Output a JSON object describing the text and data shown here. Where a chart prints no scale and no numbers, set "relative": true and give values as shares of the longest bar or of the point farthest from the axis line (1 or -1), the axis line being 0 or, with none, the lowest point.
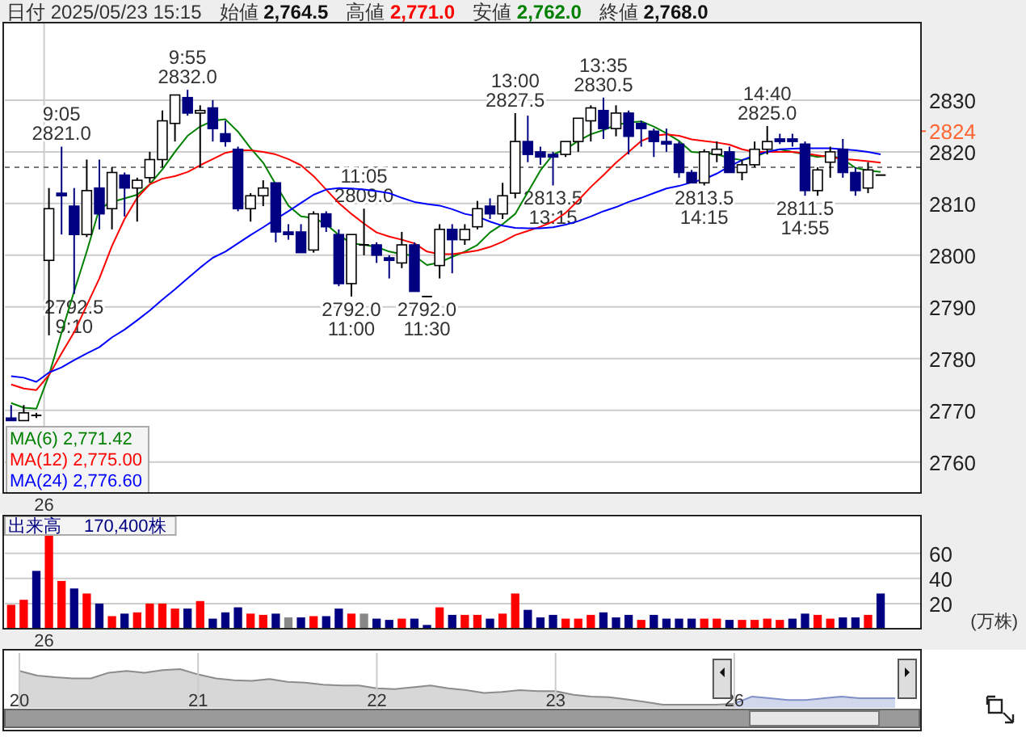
{
  "chart_data": [
    {
      "type": "candlestick",
      "annotations": [
        "日付 2025/05/23 15:15",
        "始値 **2,764.5**",
        "高値 **2,771.0**",
        "安値 **2,762.0**",
        "終値 **2,768.0**",
        {
          "text": "9:05\n2821.0",
          "y": 2821.0
        },
        {
          "text": "2792.5\n9:10",
          "y": 2792.5
        },
        {
          "text": "9:55\n2832.0",
          "y": 2832.0
        },
        {
          "text": "11:05\n2809.0",
          "y": 2809.0
        },
        {
          "text": "2792.0\n11:00",
          "y": 2792.0
        },
        {
          "text": "2792.0\n11:30",
          "y": 2792.0
        },
        {
          "text": "13:00\n2827.5",
          "y": 2827.5
        },
        {
          "text": "2813.5\n13:15",
          "y": 2813.5
        },
        {
          "text": "13:35\n2830.5",
          "y": 2830.5
        },
        {
          "text": "2813.5\n14:15",
          "y": 2813.5
        },
        {
          "text": "14:40\n2825.0",
          "y": 2825.0
        },
        {
          "text": "2811.5\n14:55",
          "y": 2811.5
        }
      ],
      "categories": [
        null,
        null,
        null,
        "26",
        null,
        null,
        null,
        null,
        null,
        null,
        null,
        null,
        null,
        null,
        null,
        null,
        null,
        null,
        null,
        null,
        null,
        null,
        null,
        null,
        null,
        null,
        null,
        null,
        null,
        null,
        null,
        null,
        null,
        null,
        null,
        null,
        null,
        null,
        null,
        null,
        null,
        null,
        null,
        null,
        null,
        null,
        null,
        null,
        null,
        null,
        null,
        null,
        null,
        null,
        null,
        null,
        null,
        null,
        null,
        null,
        null,
        null,
        null,
        null,
        null,
        null,
        null,
        null,
        null,
        null
      ],
      "ohlc": [
        [
          2768.5,
          2771,
          2768,
          2768
        ],
        [
          2768,
          2771,
          2768,
          2769.5
        ],
        [
          2769,
          2769.5,
          2768.5,
          2769
        ],
        [
          2799,
          2813,
          2784.5,
          2809
        ],
        [
          2812,
          2821,
          2804,
          2811.5
        ],
        [
          2809.5,
          2813,
          2792.5,
          2804
        ],
        [
          2804,
          2818.5,
          2803.5,
          2812.5
        ],
        [
          2813,
          2818.5,
          2805,
          2808
        ],
        [
          2809,
          2817,
          2805,
          2816
        ],
        [
          2815.5,
          2816,
          2807.5,
          2813
        ],
        [
          2813,
          2815,
          2806.5,
          2814.5
        ],
        [
          2815,
          2820,
          2814,
          2818.5
        ],
        [
          2818.5,
          2828,
          2817,
          2826
        ],
        [
          2825.5,
          2831,
          2822,
          2831
        ],
        [
          2830.5,
          2832,
          2827,
          2827.5
        ],
        [
          2827.5,
          2829,
          2817,
          2828
        ],
        [
          2828.5,
          2830,
          2822,
          2824.5
        ],
        [
          2823.5,
          2826,
          2821,
          2822
        ],
        [
          2820.5,
          2821,
          2808.5,
          2809
        ],
        [
          2809,
          2812,
          2806.5,
          2811.5
        ],
        [
          2811.5,
          2814.5,
          2809.5,
          2813
        ],
        [
          2814,
          2814,
          2802.5,
          2804.5
        ],
        [
          2804.5,
          2806,
          2803,
          2804
        ],
        [
          2804.5,
          2806,
          2800.5,
          2800.5
        ],
        [
          2801,
          2808.5,
          2800.5,
          2808
        ],
        [
          2808,
          2808.5,
          2804.5,
          2805.5
        ],
        [
          2804,
          2805,
          2794,
          2794.5
        ],
        [
          2794.5,
          2804,
          2792,
          2804
        ],
        [
          2802,
          2809,
          2800,
          2802
        ],
        [
          2802,
          2802.5,
          2798.5,
          2800
        ],
        [
          2799.5,
          2800,
          2795.5,
          2799
        ],
        [
          2798.5,
          2804.5,
          2797.5,
          2802
        ],
        [
          2802,
          2802.5,
          2793,
          2793
        ],
        [
          2792,
          2792,
          2792,
          2792
        ],
        [
          2798,
          2806,
          2795.5,
          2805
        ],
        [
          2805,
          2806,
          2796.5,
          2803
        ],
        [
          2803,
          2806,
          2802,
          2805
        ],
        [
          2805.5,
          2810.5,
          2805,
          2809
        ],
        [
          2809.5,
          2811,
          2807,
          2808
        ],
        [
          2808,
          2814,
          2807,
          2811.5
        ],
        [
          2812,
          2827.5,
          2811,
          2822
        ],
        [
          2822,
          2827,
          2818,
          2819.5
        ],
        [
          2820,
          2821,
          2817.5,
          2819
        ],
        [
          2819.5,
          2820,
          2813.5,
          2819
        ],
        [
          2819.5,
          2822,
          2819,
          2822
        ],
        [
          2822,
          2826.5,
          2820,
          2826.5
        ],
        [
          2826,
          2829,
          2822,
          2828.5
        ],
        [
          2828,
          2830.5,
          2822.5,
          2824.5
        ],
        [
          2824.5,
          2829,
          2823,
          2827.5
        ],
        [
          2827.5,
          2828,
          2819.5,
          2823
        ],
        [
          2825.5,
          2826,
          2821,
          2824.5
        ],
        [
          2824,
          2824.5,
          2819,
          2822
        ],
        [
          2822,
          2824.5,
          2820,
          2821.5
        ],
        [
          2821.5,
          2822,
          2815,
          2816
        ],
        [
          2816,
          2816.5,
          2814,
          2814
        ],
        [
          2814,
          2820.5,
          2813.5,
          2820
        ],
        [
          2819.5,
          2822,
          2818,
          2820.5
        ],
        [
          2820,
          2821,
          2816,
          2816
        ],
        [
          2816,
          2818.5,
          2814.5,
          2817.5
        ],
        [
          2817.5,
          2822,
          2817,
          2820.5
        ],
        [
          2820.5,
          2825,
          2819.5,
          2822
        ],
        [
          2822.5,
          2823.5,
          2821.5,
          2822
        ],
        [
          2822.5,
          2823.5,
          2821,
          2822
        ],
        [
          2821.5,
          2822,
          2811.5,
          2812.5
        ],
        [
          2812.5,
          2817,
          2811.5,
          2816.5
        ],
        [
          2818,
          2821,
          2815,
          2820
        ],
        [
          2820.5,
          2822.5,
          2815,
          2816
        ],
        [
          2816,
          2817,
          2811.5,
          2812.5
        ],
        [
          2813,
          2818,
          2812,
          2816.5
        ],
        [
          2815.5,
          2815.5,
          2815.5,
          2815.5
        ]
      ],
      "series": [
        {
          "name": "MA(6) 2,771.42",
          "type": "line",
          "color": "#008000",
          "values": [
            2771.4,
            2770.5,
            2770.3,
            2776.8,
            2785,
            2793,
            2800.7,
            2809,
            2810.3,
            2811,
            2811.7,
            2813.7,
            2816.6,
            2820,
            2823.1,
            2824.9,
            2826,
            2826.3,
            2823.9,
            2820.7,
            2817.9,
            2813.7,
            2809.6,
            2807.5,
            2807.2,
            2806,
            2803.9,
            2802.3,
            2802,
            2801.6,
            2800.7,
            2800.2,
            2799.9,
            2798.1,
            2798.6,
            2799.7,
            2800.7,
            2802,
            2804.4,
            2806,
            2808,
            2812.2,
            2816.4,
            2819.5,
            2820.5,
            2822.1,
            2823.4,
            2824.2,
            2825.2,
            2825.7,
            2825.9,
            2824.9,
            2823.6,
            2822.1,
            2820,
            2819.8,
            2819.5,
            2818.8,
            2818.4,
            2819,
            2820,
            2820.5,
            2820,
            2819.5,
            2819,
            2819.3,
            2818.6,
            2816.9,
            2816.4,
            2816.1
          ]
        },
        {
          "name": "MA(12) 2,775.00",
          "type": "line",
          "color": "#ff0000",
          "values": [
            2775.0,
            2774.2,
            2773.9,
            2776.8,
            2781,
            2785.1,
            2790.3,
            2795.5,
            2801.8,
            2807,
            2811.1,
            2813.7,
            2814.8,
            2815.3,
            2816.1,
            2817.4,
            2818.6,
            2819.8,
            2820.3,
            2820.3,
            2820,
            2819.5,
            2818.6,
            2817.4,
            2815.3,
            2812.7,
            2810.1,
            2808,
            2806.1,
            2804.4,
            2803.6,
            2803,
            2802.3,
            2800.7,
            2800.2,
            2800.2,
            2800.5,
            2800.9,
            2801.6,
            2802.6,
            2803.9,
            2804.7,
            2805.5,
            2806.5,
            2808.2,
            2810.6,
            2813.2,
            2815.5,
            2817.9,
            2820,
            2822.1,
            2823.1,
            2823.4,
            2823.1,
            2822.4,
            2822.1,
            2821.8,
            2821.4,
            2820.5,
            2820,
            2820,
            2820,
            2820,
            2819.7,
            2819.3,
            2819,
            2818.6,
            2818.4,
            2818.2,
            2817.9
          ]
        },
        {
          "name": "MA(24) 2,776.60",
          "type": "line",
          "color": "#0000ff",
          "values": [
            2776.6,
            2776.3,
            2775.5,
            2777.3,
            2778.3,
            2779.7,
            2781,
            2782.2,
            2784.1,
            2785.6,
            2787.4,
            2789.3,
            2791.4,
            2793.4,
            2795.5,
            2797.6,
            2799.5,
            2800.7,
            2802.3,
            2803.9,
            2805.4,
            2807,
            2808.5,
            2810.1,
            2811.7,
            2812.7,
            2813,
            2812.9,
            2812.7,
            2812.4,
            2812,
            2811.1,
            2810.3,
            2809.9,
            2809.6,
            2808.9,
            2808,
            2807.5,
            2806.5,
            2805.7,
            2805.3,
            2805.2,
            2805.2,
            2805.4,
            2805.9,
            2806.6,
            2807.5,
            2808.5,
            2809.3,
            2810.3,
            2811.1,
            2812,
            2812.9,
            2813.4,
            2814.1,
            2814.7,
            2815.8,
            2817.2,
            2818.4,
            2819.3,
            2820,
            2820.5,
            2820.6,
            2820.7,
            2820.7,
            2820.7,
            2820.5,
            2820.3,
            2820,
            2819.5
          ]
        }
      ],
      "ylim": [
        2754,
        2845
      ],
      "yticks": [
        2760,
        2770,
        2780,
        2790,
        2800,
        2810,
        2820,
        {
          "value": 2824,
          "label": "2824"
        },
        2830
      ],
      "grid": true,
      "legend": "bottom left",
      "ref_lines": [
        {
          "axis": "y",
          "value": 2817,
          "line_style": "dashed",
          "color": "#777777"
        }
      ]
    },
    {
      "type": "bar",
      "title": "出来高",
      "subtitle": "170,400株",
      "ylabel": "(万株)",
      "categories": [
        null,
        null,
        null,
        "26",
        null,
        null,
        null,
        null,
        null,
        null,
        null,
        null,
        null,
        null,
        null,
        null,
        null,
        null,
        null,
        null,
        null,
        null,
        null,
        null,
        null,
        null,
        null,
        null,
        null,
        null,
        null,
        null,
        null,
        null,
        null,
        null,
        null,
        null,
        null,
        null,
        null,
        null,
        null,
        null,
        null,
        null,
        null,
        null,
        null,
        null,
        null,
        null,
        null,
        null,
        null,
        null,
        null,
        null,
        null,
        null,
        null,
        null,
        null,
        null,
        null,
        null,
        null,
        null,
        null,
        null
      ],
      "values": [
        19,
        23,
        46,
        74,
        38,
        32,
        28,
        20,
        10,
        12,
        13,
        20,
        20,
        16,
        16,
        22,
        8,
        13,
        17,
        12,
        11,
        12,
        9,
        9,
        10,
        10,
        16,
        12,
        12,
        8,
        7,
        8,
        8,
        3,
        17,
        11,
        11,
        11,
        8,
        12,
        28,
        15,
        9,
        11,
        8,
        8,
        11,
        13,
        9,
        11,
        7,
        11,
        8,
        8,
        8,
        8,
        8,
        7,
        7,
        7,
        8,
        7,
        8,
        12,
        11,
        8,
        9,
        9,
        11,
        28
      ],
      "colors": [
        "#ff0000",
        "#ff0000",
        "#000080",
        "#ff0000",
        "#ff0000",
        "#000080",
        "#ff0000",
        "#000080",
        "#ff0000",
        "#000080",
        "#ff0000",
        "#ff0000",
        "#ff0000",
        "#ff0000",
        "#000080",
        "#ff0000",
        "#000080",
        "#000080",
        "#000080",
        "#ff0000",
        "#ff0000",
        "#000080",
        "#888888",
        "#000080",
        "#ff0000",
        "#000080",
        "#000080",
        "#ff0000",
        "#888888",
        "#000080",
        "#000080",
        "#ff0000",
        "#000080",
        "#000080",
        "#ff0000",
        "#000080",
        "#ff0000",
        "#ff0000",
        "#000080",
        "#ff0000",
        "#ff0000",
        "#000080",
        "#000080",
        "#000080",
        "#ff0000",
        "#ff0000",
        "#ff0000",
        "#000080",
        "#000080",
        "#000080",
        "#ff0000",
        "#000080",
        "#000080",
        "#000080",
        "#000080",
        "#ff0000",
        "#ff0000",
        "#000080",
        "#ff0000",
        "#ff0000",
        "#ff0000",
        "#ff0000",
        "#000080",
        "#000080",
        "#ff0000",
        "#ff0000",
        "#000080",
        "#000080",
        "#ff0000",
        "#000080"
      ],
      "ylim": [
        0,
        90
      ],
      "yticks": [
        20,
        40,
        60
      ],
      "grid": "y"
    },
    {
      "type": "line",
      "relative": true,
      "grid": "x",
      "categories": [
        "20",
        null,
        null,
        null,
        null,
        null,
        null,
        null,
        null,
        null,
        "21",
        null,
        null,
        null,
        null,
        null,
        null,
        null,
        null,
        null,
        "22",
        null,
        null,
        null,
        null,
        null,
        null,
        null,
        null,
        null,
        "23",
        null,
        null,
        null,
        null,
        null,
        null,
        null,
        null,
        null,
        "26",
        null,
        null,
        null,
        null,
        null,
        null,
        null,
        null,
        null
      ],
      "series": [
        {
          "color": "#8c8c8c",
          "values": [
            0.95,
            0.82,
            0.77,
            0.74,
            0.74,
            0.9,
            0.95,
            0.9,
            0.97,
            1,
            0.85,
            0.74,
            0.69,
            0.67,
            0.72,
            0.64,
            0.62,
            0.56,
            0.54,
            0.54,
            0.46,
            0.44,
            0.49,
            0.54,
            0.46,
            0.41,
            0.33,
            0.36,
            0.41,
            0.38,
            0.38,
            0.28,
            0.23,
            0.21,
            0.15,
            0.08,
            0,
            0,
            0,
            0,
            0.03,
            null,
            null,
            null,
            null,
            null,
            null,
            null,
            null,
            null
          ]
        },
        {
          "color": "#7f8fc8",
          "values": [
            null,
            null,
            null,
            null,
            null,
            null,
            null,
            null,
            null,
            null,
            null,
            null,
            null,
            null,
            null,
            null,
            null,
            null,
            null,
            null,
            null,
            null,
            null,
            null,
            null,
            null,
            null,
            null,
            null,
            null,
            null,
            null,
            null,
            null,
            null,
            null,
            null,
            null,
            null,
            null,
            0.03,
            0.23,
            0.18,
            0.13,
            0.13,
            0.18,
            0.23,
            0.18,
            0.18,
            0.18
          ]
        }
      ]
    }
  ]
}
